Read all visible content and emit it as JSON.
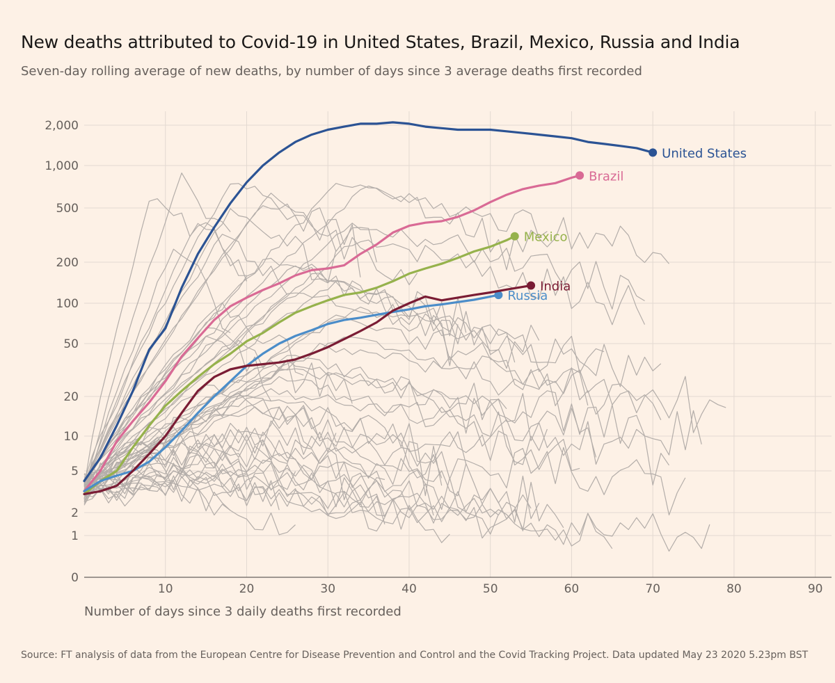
{
  "header": {
    "title": "New deaths attributed to Covid-19 in United States, Brazil, Mexico, Russia and India",
    "subtitle": "Seven-day rolling average of new deaths, by number of days since 3 average deaths first recorded"
  },
  "footer": {
    "source": "Source: FT analysis of data from the European Centre for Disease Prevention and Control and the Covid Tracking Project. Data updated May 23 2020 5.23pm BST"
  },
  "chart_data": {
    "type": "line",
    "title": "New deaths attributed to Covid-19 in United States, Brazil, Mexico, Russia and India",
    "subtitle": "Seven-day rolling average of new deaths, by number of days since 3 average deaths first recorded",
    "xlabel": "Number of days since 3 daily deaths first recorded",
    "ylabel": "",
    "y_scale": "log-like (symlog)",
    "xlim": [
      0,
      92
    ],
    "x_ticks": [
      10,
      20,
      30,
      40,
      50,
      60,
      70,
      80,
      90
    ],
    "x_tick_labels": [
      "10",
      "20",
      "30",
      "40",
      "50",
      "60",
      "70",
      "80",
      "90"
    ],
    "y_ticks": [
      {
        "value": 0,
        "label": "0"
      },
      {
        "value": 1,
        "label": "1"
      },
      {
        "value": 2,
        "label": "2"
      },
      {
        "value": 5,
        "label": "5"
      },
      {
        "value": 10,
        "label": "10"
      },
      {
        "value": 20,
        "label": "20"
      },
      {
        "value": 50,
        "label": "50"
      },
      {
        "value": 100,
        "label": "100"
      },
      {
        "value": 200,
        "label": "200"
      },
      {
        "value": 500,
        "label": "500"
      },
      {
        "value": 1000,
        "label": "1,000"
      },
      {
        "value": 2000,
        "label": "2,000"
      }
    ],
    "grid": true,
    "colors": {
      "background": "#fdf1e6",
      "grid": "#e3d9d1",
      "axis": "#66605c",
      "other_countries": "#b3ada9"
    },
    "series": [
      {
        "name": "United States",
        "color": "#2b5394",
        "x": [
          0,
          2,
          4,
          6,
          8,
          10,
          12,
          14,
          16,
          18,
          20,
          22,
          24,
          26,
          28,
          30,
          32,
          34,
          36,
          38,
          40,
          42,
          44,
          46,
          48,
          50,
          52,
          54,
          56,
          58,
          60,
          62,
          64,
          66,
          68,
          70
        ],
        "values": [
          4,
          6.5,
          12,
          22,
          45,
          65,
          130,
          230,
          360,
          540,
          760,
          1000,
          1250,
          1500,
          1700,
          1850,
          1950,
          2050,
          2050,
          2100,
          2050,
          1950,
          1900,
          1850,
          1850,
          1850,
          1800,
          1750,
          1700,
          1650,
          1600,
          1500,
          1450,
          1400,
          1350,
          1250
        ]
      },
      {
        "name": "Brazil",
        "color": "#d96a95",
        "x": [
          0,
          2,
          4,
          6,
          8,
          10,
          12,
          14,
          16,
          18,
          20,
          22,
          24,
          26,
          28,
          30,
          32,
          34,
          36,
          38,
          40,
          42,
          44,
          46,
          48,
          50,
          52,
          54,
          56,
          58,
          60,
          61
        ],
        "values": [
          3.2,
          5,
          9,
          13,
          18,
          26,
          40,
          55,
          75,
          95,
          110,
          125,
          140,
          160,
          175,
          180,
          190,
          230,
          270,
          330,
          370,
          390,
          400,
          430,
          480,
          550,
          620,
          680,
          720,
          750,
          820,
          850
        ]
      },
      {
        "name": "Mexico",
        "color": "#96b24c",
        "x": [
          0,
          2,
          4,
          6,
          8,
          10,
          12,
          14,
          16,
          18,
          20,
          22,
          24,
          26,
          28,
          30,
          32,
          34,
          36,
          38,
          40,
          42,
          44,
          46,
          48,
          50,
          52,
          53
        ],
        "values": [
          3,
          4,
          5,
          8,
          12,
          17,
          22,
          28,
          35,
          42,
          52,
          60,
          72,
          85,
          95,
          105,
          115,
          120,
          130,
          145,
          165,
          180,
          195,
          215,
          240,
          260,
          290,
          310
        ]
      },
      {
        "name": "Russia",
        "color": "#4b8dc9",
        "x": [
          0,
          2,
          4,
          6,
          8,
          10,
          12,
          14,
          16,
          18,
          20,
          22,
          24,
          26,
          28,
          30,
          32,
          34,
          36,
          38,
          40,
          42,
          44,
          46,
          48,
          50,
          51
        ],
        "values": [
          3.2,
          4,
          4.5,
          5,
          6,
          8,
          11,
          15,
          20,
          26,
          34,
          42,
          50,
          57,
          63,
          70,
          75,
          78,
          82,
          86,
          90,
          95,
          98,
          102,
          106,
          112,
          115
        ]
      },
      {
        "name": "India",
        "color": "#7a1c34",
        "x": [
          0,
          2,
          4,
          6,
          8,
          10,
          12,
          14,
          16,
          18,
          20,
          22,
          24,
          26,
          28,
          30,
          32,
          34,
          36,
          38,
          40,
          42,
          44,
          46,
          48,
          50,
          52,
          54,
          55
        ],
        "values": [
          3,
          3.2,
          3.6,
          5,
          7,
          10,
          15,
          22,
          28,
          32,
          34,
          35,
          36,
          38,
          42,
          47,
          54,
          62,
          72,
          88,
          100,
          112,
          105,
          110,
          115,
          120,
          126,
          132,
          135
        ]
      }
    ]
  }
}
